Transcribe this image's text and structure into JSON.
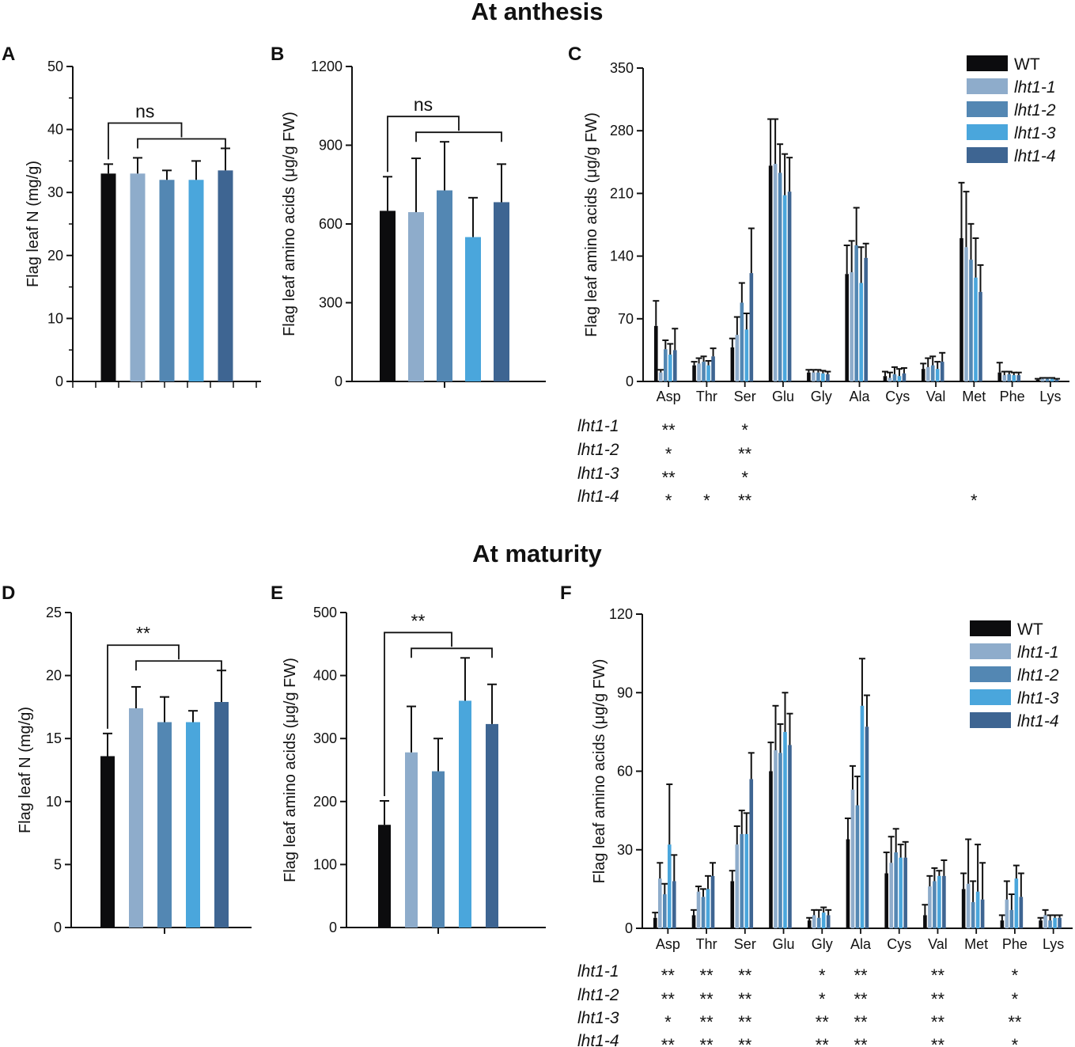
{
  "sections": [
    {
      "title": "At anthesis"
    },
    {
      "title": "At maturity"
    }
  ],
  "colors": {
    "WT": "#0c0c0e",
    "lht1-1": "#8eaccb",
    "lht1-2": "#5387b3",
    "lht1-3": "#4aa6dc",
    "lht1-4": "#3e6592"
  },
  "legend": {
    "C": [
      "WT",
      "lht1-1",
      "lht1-2",
      "lht1-3",
      "lht1-4"
    ],
    "F": [
      "WT",
      "lht1-1",
      "lht1-2",
      "lht1-3",
      "lht1-4"
    ]
  },
  "chart_data": [
    {
      "panel": "A",
      "type": "bar",
      "section": "At anthesis",
      "ylabel": "Flag leaf N (mg/g)",
      "ylim": [
        0,
        50
      ],
      "yticks": [
        "0",
        "10",
        "20",
        "30",
        "40",
        "50"
      ],
      "categories": [
        "WT",
        "lht1-1",
        "lht1-2",
        "lht1-3",
        "lht1-4"
      ],
      "values": [
        33.0,
        33.0,
        32.0,
        32.0,
        33.5
      ],
      "errors": [
        1.5,
        2.5,
        1.5,
        3.0,
        3.5
      ],
      "significance": "ns"
    },
    {
      "panel": "B",
      "type": "bar",
      "section": "At anthesis",
      "ylabel": "Flag leaf amino acids (μg/g FW)",
      "ylim": [
        0,
        1200
      ],
      "yticks": [
        "0",
        "300",
        "600",
        "900",
        "1200"
      ],
      "categories": [
        "WT",
        "lht1-1",
        "lht1-2",
        "lht1-3",
        "lht1-4"
      ],
      "values": [
        650,
        645,
        728,
        550,
        683
      ],
      "errors": [
        130,
        205,
        185,
        150,
        145
      ],
      "significance": "ns"
    },
    {
      "panel": "C",
      "type": "bar",
      "section": "At anthesis",
      "ylabel": "Flag leaf amino acids (μg/g FW)",
      "ylim": [
        0,
        350
      ],
      "yticks": [
        "0",
        "70",
        "140",
        "210",
        "280",
        "350"
      ],
      "categories": [
        "Asp",
        "Thr",
        "Ser",
        "Glu",
        "Gly",
        "Ala",
        "Cys",
        "Val",
        "Met",
        "Phe",
        "Lys"
      ],
      "series": [
        {
          "name": "WT",
          "values": [
            62,
            18,
            38,
            241,
            10,
            120,
            6,
            14,
            160,
            10,
            2
          ],
          "errors": [
            28,
            4,
            10,
            52,
            3,
            32,
            5,
            6,
            62,
            11,
            1
          ]
        },
        {
          "name": "lht1-1",
          "values": [
            10,
            20,
            52,
            243,
            10,
            122,
            4,
            16,
            150,
            7,
            3
          ],
          "errors": [
            3,
            6,
            20,
            50,
            3,
            35,
            6,
            10,
            62,
            4,
            1
          ]
        },
        {
          "name": "lht1-2",
          "values": [
            36,
            22,
            88,
            233,
            10,
            152,
            8,
            18,
            136,
            8,
            3
          ],
          "errors": [
            10,
            6,
            22,
            32,
            3,
            42,
            8,
            10,
            40,
            3,
            1
          ]
        },
        {
          "name": "lht1-3",
          "values": [
            30,
            18,
            58,
            208,
            9,
            110,
            6,
            14,
            116,
            7,
            3
          ],
          "errors": [
            12,
            5,
            18,
            46,
            3,
            40,
            8,
            8,
            44,
            3,
            1
          ]
        },
        {
          "name": "lht1-4",
          "values": [
            35,
            28,
            121,
            212,
            8,
            138,
            9,
            22,
            100,
            7,
            2
          ],
          "errors": [
            24,
            9,
            50,
            38,
            3,
            16,
            6,
            10,
            30,
            3,
            1
          ]
        }
      ],
      "significance_rows": [
        {
          "label": "lht1-1",
          "marks": [
            "**",
            "",
            "*",
            "",
            "",
            "",
            "",
            "",
            "",
            "",
            ""
          ]
        },
        {
          "label": "lht1-2",
          "marks": [
            "*",
            "",
            "**",
            "",
            "",
            "",
            "",
            "",
            "",
            "",
            ""
          ]
        },
        {
          "label": "lht1-3",
          "marks": [
            "**",
            "",
            "*",
            "",
            "",
            "",
            "",
            "",
            "",
            "",
            ""
          ]
        },
        {
          "label": "lht1-4",
          "marks": [
            "*",
            "*",
            "**",
            "",
            "",
            "",
            "",
            "",
            "*",
            "",
            ""
          ]
        }
      ]
    },
    {
      "panel": "D",
      "type": "bar",
      "section": "At maturity",
      "ylabel": "Flag leaf N (mg/g)",
      "ylim": [
        0,
        25
      ],
      "yticks": [
        "0",
        "5",
        "10",
        "15",
        "20",
        "25"
      ],
      "categories": [
        "WT",
        "lht1-1",
        "lht1-2",
        "lht1-3",
        "lht1-4"
      ],
      "values": [
        13.6,
        17.4,
        16.3,
        16.3,
        17.9
      ],
      "errors": [
        1.8,
        1.7,
        2.0,
        0.9,
        2.5
      ],
      "significance": "**"
    },
    {
      "panel": "E",
      "type": "bar",
      "section": "At maturity",
      "ylabel": "Flag leaf amino acids (μg/g FW)",
      "ylim": [
        0,
        500
      ],
      "yticks": [
        "0",
        "100",
        "200",
        "300",
        "400",
        "500"
      ],
      "categories": [
        "WT",
        "lht1-1",
        "lht1-2",
        "lht1-3",
        "lht1-4"
      ],
      "values": [
        163,
        278,
        248,
        360,
        323
      ],
      "errors": [
        38,
        73,
        52,
        68,
        63
      ],
      "significance": "**"
    },
    {
      "panel": "F",
      "type": "bar",
      "section": "At maturity",
      "ylabel": "Flag leaf amino acids (μg/g FW)",
      "ylim": [
        0,
        120
      ],
      "yticks": [
        "0",
        "30",
        "60",
        "90",
        "120"
      ],
      "categories": [
        "Asp",
        "Thr",
        "Ser",
        "Glu",
        "Gly",
        "Ala",
        "Cys",
        "Val",
        "Met",
        "Phe",
        "Lys"
      ],
      "series": [
        {
          "name": "WT",
          "values": [
            4,
            5,
            18,
            60,
            3,
            34,
            21,
            5,
            15,
            3,
            3
          ],
          "errors": [
            2,
            2,
            4,
            11,
            1,
            8,
            8,
            4,
            6,
            2,
            1
          ]
        },
        {
          "name": "lht1-1",
          "values": [
            19,
            14,
            32,
            68,
            5,
            53,
            25,
            16,
            17,
            11,
            5
          ],
          "errors": [
            6,
            2,
            7,
            17,
            2,
            9,
            10,
            4,
            17,
            7,
            2
          ]
        },
        {
          "name": "lht1-2",
          "values": [
            13,
            12,
            36,
            67,
            4,
            47,
            29,
            18,
            10,
            7,
            3
          ],
          "errors": [
            4,
            3,
            9,
            11,
            3,
            11,
            9,
            5,
            8,
            6,
            2
          ]
        },
        {
          "name": "lht1-3",
          "values": [
            32,
            15,
            36,
            75,
            6,
            85,
            27,
            20,
            14,
            19,
            4
          ],
          "errors": [
            23,
            5,
            8,
            15,
            2,
            18,
            5,
            2,
            18,
            5,
            1
          ]
        },
        {
          "name": "lht1-4",
          "values": [
            18,
            20,
            57,
            70,
            5,
            77,
            27,
            20,
            11,
            12,
            4
          ],
          "errors": [
            10,
            5,
            10,
            12,
            2,
            12,
            6,
            6,
            14,
            9,
            1
          ]
        }
      ],
      "significance_rows": [
        {
          "label": "lht1-1",
          "marks": [
            "**",
            "**",
            "**",
            "",
            "*",
            "**",
            "",
            "**",
            "",
            "*",
            ""
          ]
        },
        {
          "label": "lht1-2",
          "marks": [
            "**",
            "**",
            "**",
            "",
            "*",
            "**",
            "",
            "**",
            "",
            "*",
            ""
          ]
        },
        {
          "label": "lht1-3",
          "marks": [
            "*",
            "**",
            "**",
            "",
            "**",
            "**",
            "",
            "**",
            "",
            "**",
            ""
          ]
        },
        {
          "label": "lht1-4",
          "marks": [
            "**",
            "**",
            "**",
            "",
            "**",
            "**",
            "",
            "**",
            "",
            "*",
            ""
          ]
        }
      ]
    }
  ]
}
